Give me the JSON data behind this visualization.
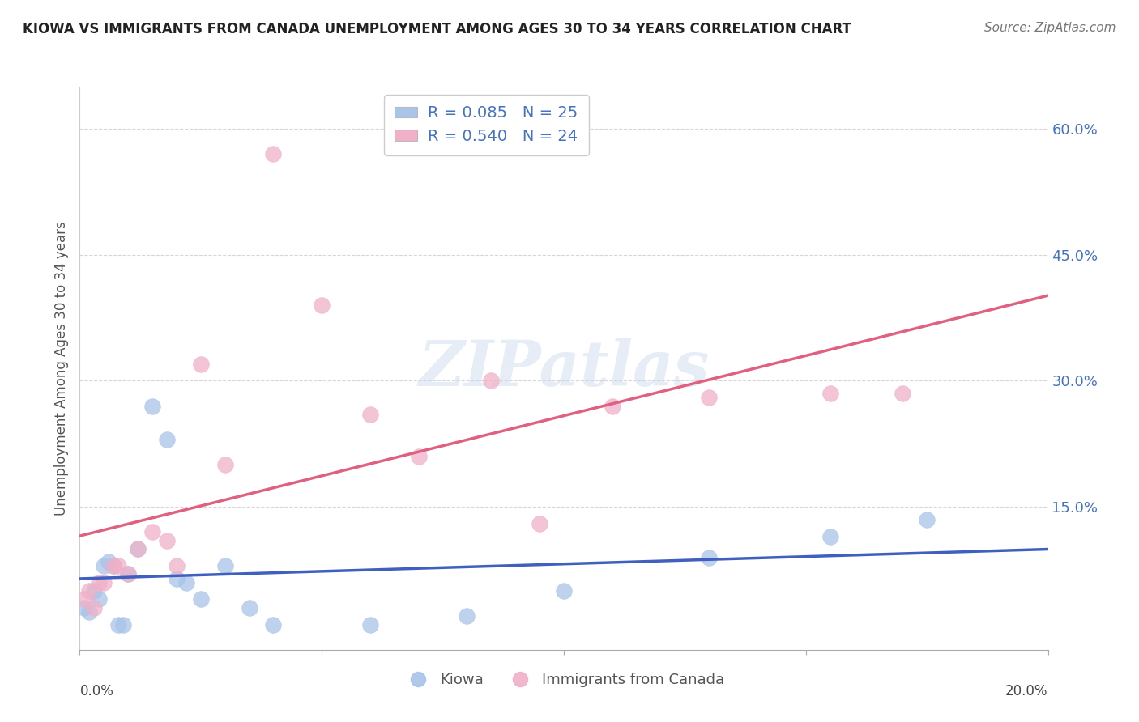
{
  "title": "KIOWA VS IMMIGRANTS FROM CANADA UNEMPLOYMENT AMONG AGES 30 TO 34 YEARS CORRELATION CHART",
  "source": "Source: ZipAtlas.com",
  "ylabel": "Unemployment Among Ages 30 to 34 years",
  "xlim": [
    0.0,
    0.2
  ],
  "ylim": [
    -0.02,
    0.65
  ],
  "yticks": [
    0.15,
    0.3,
    0.45,
    0.6
  ],
  "ytick_labels": [
    "15.0%",
    "30.0%",
    "45.0%",
    "60.0%"
  ],
  "legend_entries": [
    {
      "label": "R = 0.085   N = 25"
    },
    {
      "label": "R = 0.540   N = 24"
    }
  ],
  "legend_bottom": [
    "Kiowa",
    "Immigrants from Canada"
  ],
  "kiowa_color": "#a8c4e8",
  "canada_color": "#f0b0c8",
  "kiowa_line_color": "#4060c0",
  "canada_line_color": "#e06080",
  "kiowa_scatter_x": [
    0.001,
    0.002,
    0.003,
    0.004,
    0.005,
    0.006,
    0.007,
    0.008,
    0.009,
    0.01,
    0.012,
    0.015,
    0.018,
    0.02,
    0.022,
    0.025,
    0.03,
    0.035,
    0.04,
    0.06,
    0.08,
    0.1,
    0.13,
    0.155,
    0.175
  ],
  "kiowa_scatter_y": [
    0.03,
    0.025,
    0.05,
    0.04,
    0.08,
    0.085,
    0.08,
    0.01,
    0.01,
    0.07,
    0.1,
    0.27,
    0.23,
    0.065,
    0.06,
    0.04,
    0.08,
    0.03,
    0.01,
    0.01,
    0.02,
    0.05,
    0.09,
    0.115,
    0.135
  ],
  "canada_scatter_x": [
    0.001,
    0.002,
    0.003,
    0.004,
    0.005,
    0.007,
    0.008,
    0.01,
    0.012,
    0.015,
    0.018,
    0.02,
    0.025,
    0.03,
    0.04,
    0.05,
    0.06,
    0.07,
    0.085,
    0.095,
    0.11,
    0.13,
    0.155,
    0.17
  ],
  "canada_scatter_y": [
    0.04,
    0.05,
    0.03,
    0.06,
    0.06,
    0.08,
    0.08,
    0.07,
    0.1,
    0.12,
    0.11,
    0.08,
    0.32,
    0.2,
    0.57,
    0.39,
    0.26,
    0.21,
    0.3,
    0.13,
    0.27,
    0.28,
    0.285,
    0.285
  ],
  "background_color": "#ffffff",
  "grid_color": "#cccccc",
  "watermark_text": "ZIPatlas",
  "title_fontsize": 12,
  "source_fontsize": 11,
  "tick_fontsize": 13,
  "ylabel_fontsize": 12,
  "legend_fontsize": 14
}
